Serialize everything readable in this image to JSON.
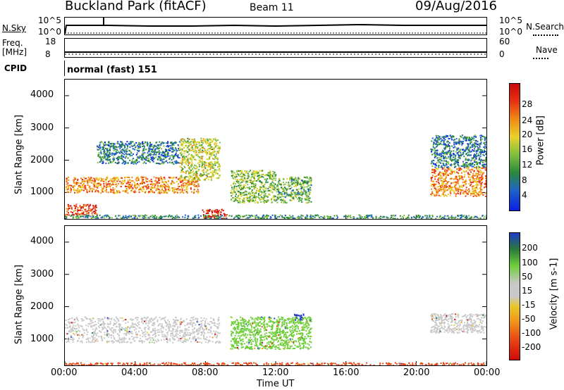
{
  "header": {
    "title": "Buckland Park (fitACF)",
    "beam": "Beam 11",
    "date": "09/Aug/2016"
  },
  "status_panels": {
    "nsky_label": "N.Sky",
    "nsky_ticks": [
      "10^5",
      "10^0"
    ],
    "nsearch_label": "N.Search",
    "nsearch_ticks": [
      "10^5",
      "10^0"
    ],
    "freq_label_1": "Freq.",
    "freq_label_2": "[MHz]",
    "freq_ticks": [
      "18",
      "8"
    ],
    "nave_label": "Nave",
    "nave_ticks": [
      "60",
      "0"
    ],
    "cpid_label": "CPID",
    "cpid_value": "normal (fast) 151"
  },
  "chart_data": [
    {
      "type": "heatmap",
      "panel": "power",
      "ylabel": "Slant Range [km]",
      "ylim": [
        180,
        4500
      ],
      "yticks": [
        "1000",
        "2000",
        "3000",
        "4000"
      ],
      "colorbar_label": "Power [dB]",
      "colorbar_ticks": [
        "4",
        "8",
        "12",
        "16",
        "20",
        "24",
        "28"
      ],
      "colorbar_range": [
        0,
        30
      ],
      "colors": [
        "#0a1ee6",
        "#1f63c8",
        "#2a8a3a",
        "#7fbf3f",
        "#e8d22a",
        "#f08a14",
        "#e83214",
        "#c80a0a"
      ],
      "echo_regions": [
        {
          "t": [
            0.0,
            7.6
          ],
          "r": [
            1000,
            1500
          ],
          "level": 22
        },
        {
          "t": [
            0.0,
            1.8
          ],
          "r": [
            300,
            650
          ],
          "level": 26
        },
        {
          "t": [
            1.8,
            6.5
          ],
          "r": [
            1900,
            2600
          ],
          "level": 8
        },
        {
          "t": [
            6.5,
            8.8
          ],
          "r": [
            1400,
            2700
          ],
          "level": 16
        },
        {
          "t": [
            7.8,
            9.2
          ],
          "r": [
            200,
            500
          ],
          "level": 28
        },
        {
          "t": [
            9.4,
            12.0
          ],
          "r": [
            700,
            1700
          ],
          "level": 14
        },
        {
          "t": [
            12.0,
            14.0
          ],
          "r": [
            700,
            1500
          ],
          "level": 12
        },
        {
          "t": [
            20.8,
            24.0
          ],
          "r": [
            900,
            1800
          ],
          "level": 22
        },
        {
          "t": [
            20.8,
            24.0
          ],
          "r": [
            1800,
            2800
          ],
          "level": 8
        },
        {
          "t": [
            0.0,
            24.0
          ],
          "r": [
            200,
            320
          ],
          "level": 10
        }
      ]
    },
    {
      "type": "heatmap",
      "panel": "velocity",
      "ylabel": "Slant Range [km]",
      "ylim": [
        180,
        4500
      ],
      "yticks": [
        "1000",
        "2000",
        "3000",
        "4000"
      ],
      "xticks": [
        "00:00",
        "04:00",
        "08:00",
        "12:00",
        "16:00",
        "20:00",
        "00:00"
      ],
      "xlabel": "Time UT",
      "colorbar_label": "Velocity [m s-1]",
      "colorbar_ticks": [
        "200",
        "100",
        "50",
        "15",
        "-15",
        "-50",
        "-100",
        "-200"
      ],
      "colors": [
        "#1e3cc8",
        "#2a7a3a",
        "#6fcf3a",
        "#c8c8c8",
        "#e8c828",
        "#f09418",
        "#e84614",
        "#d00a0a"
      ],
      "echo_regions": [
        {
          "t": [
            0.0,
            8.8
          ],
          "r": [
            900,
            1700
          ],
          "level": 0
        },
        {
          "t": [
            9.4,
            14.0
          ],
          "r": [
            700,
            1700
          ],
          "level": 40
        },
        {
          "t": [
            13.0,
            13.6
          ],
          "r": [
            1600,
            1800
          ],
          "level": 180
        },
        {
          "t": [
            20.8,
            24.0
          ],
          "r": [
            1200,
            1800
          ],
          "level": 0
        },
        {
          "t": [
            0.0,
            24.0
          ],
          "r": [
            180,
            280
          ],
          "level": -80
        }
      ]
    }
  ]
}
